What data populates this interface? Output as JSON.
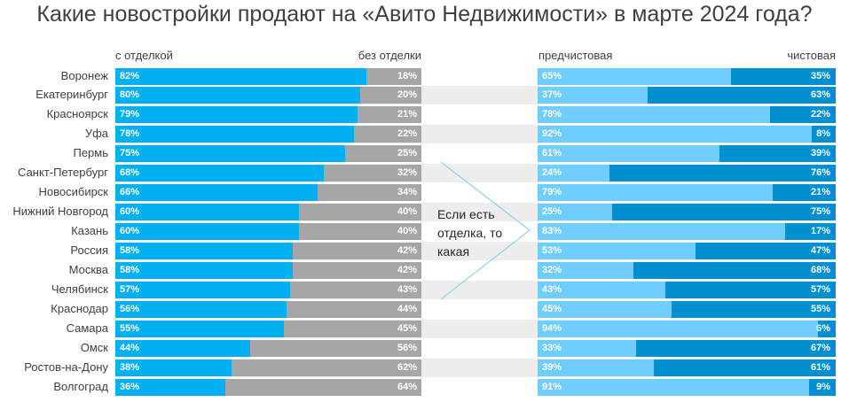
{
  "chart_data": [
    {
      "type": "bar",
      "stacked": "100%",
      "orientation": "horizontal",
      "title": "Какие новостройки продают на «Авито Недвижимости» в марте 2024 года?",
      "categories": [
        "Воронеж",
        "Екатеринбург",
        "Красноярск",
        "Уфа",
        "Пермь",
        "Санкт-Петербург",
        "Новосибирск",
        "Нижний Новгород",
        "Казань",
        "Россия",
        "Москва",
        "Челябинск",
        "Краснодар",
        "Самара",
        "Омск",
        "Ростов-на-Дону",
        "Волгоград"
      ],
      "series": [
        {
          "name": "с отделкой",
          "color": "#00b0f0",
          "values": [
            82,
            80,
            79,
            78,
            75,
            68,
            66,
            60,
            60,
            58,
            58,
            57,
            56,
            55,
            44,
            38,
            36
          ]
        },
        {
          "name": "без отделки",
          "color": "#a6a6a6",
          "values": [
            18,
            20,
            21,
            22,
            25,
            32,
            34,
            40,
            40,
            42,
            42,
            43,
            44,
            45,
            56,
            62,
            64
          ]
        }
      ]
    },
    {
      "type": "bar",
      "stacked": "100%",
      "orientation": "horizontal",
      "annotation": "Если есть отделка, то какая",
      "series": [
        {
          "name": "предчистовая",
          "color": "#6fcdff",
          "values": [
            65,
            37,
            78,
            92,
            61,
            24,
            79,
            25,
            83,
            53,
            32,
            43,
            45,
            94,
            33,
            39,
            91
          ]
        },
        {
          "name": "чистовая",
          "color": "#0090d0",
          "values": [
            35,
            63,
            22,
            8,
            39,
            76,
            21,
            75,
            17,
            47,
            68,
            57,
            55,
            6,
            67,
            61,
            9
          ]
        }
      ]
    }
  ]
}
